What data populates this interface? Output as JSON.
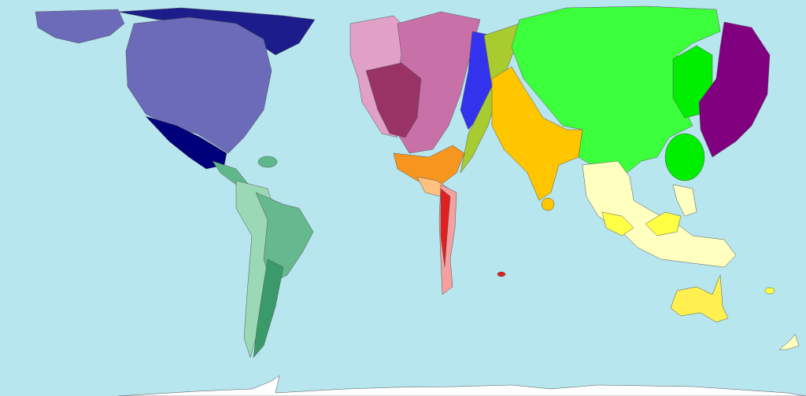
{
  "map": {
    "type": "cartogram",
    "colors": {
      "ocean": "#b7e6ee",
      "north_america": "#6b6bba",
      "arctic_canada": "#1c1c8a",
      "mexico": "#00007a",
      "caribbean": "#5fb88a",
      "south_america_light": "#9ad8b6",
      "south_america_mid": "#66b88e",
      "south_america_dark": "#3a9a6a",
      "western_europe_light": "#e0a0c8",
      "western_europe_mid": "#c870a8",
      "western_europe_dark": "#993366",
      "eastern_europe": "#3333ee",
      "central_asia": "#a8cc30",
      "middle_east": "#f7961e",
      "north_africa": "#ffc080",
      "africa_red": "#e02020",
      "africa_pink": "#f4a0a0",
      "south_asia": "#ffc600",
      "china": "#3cff3c",
      "japan": "#00ee00",
      "east_asia": "#800080",
      "southeast_asia": "#ffffc0",
      "indonesia": "#ffff44",
      "australia": "#fff050",
      "antarctica": "#ffffff"
    }
  }
}
